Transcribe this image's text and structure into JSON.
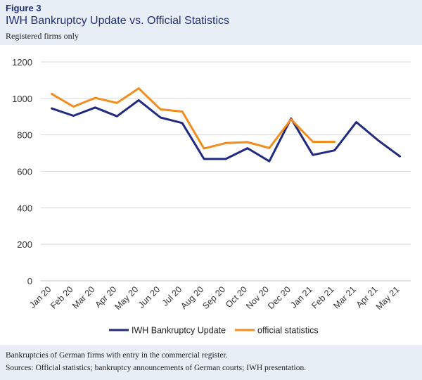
{
  "header": {
    "figure_label": "Figure 3",
    "title": "IWH Bankruptcy Update vs. Official Statistics",
    "subtitle": "Registered firms only"
  },
  "footer": {
    "note": "Bankruptcies of German firms with entry in the commercial register.",
    "sources": "Sources: Official statistics; bankruptcy announcements of German courts; IWH presentation."
  },
  "chart_data": {
    "type": "line",
    "title": "IWH Bankruptcy Update vs. Official Statistics",
    "subtitle": "Registered firms only",
    "xlabel": "",
    "ylabel": "",
    "ylim": [
      0,
      1200
    ],
    "yticks": [
      0,
      200,
      400,
      600,
      800,
      1000,
      1200
    ],
    "grid": true,
    "legend_position": "bottom",
    "categories": [
      "Jan 20",
      "Feb 20",
      "Mar 20",
      "Apr 20",
      "May 20",
      "Jun 20",
      "Jul 20",
      "Aug 20",
      "Sep 20",
      "Oct 20",
      "Nov 20",
      "Dec 20",
      "Jan 21",
      "Feb 21",
      "Mar 21",
      "Apr 21",
      "May 21"
    ],
    "series": [
      {
        "name": "IWH Bankruptcy Update",
        "color": "#1f2a80",
        "values": [
          945,
          905,
          950,
          902,
          990,
          895,
          865,
          668,
          668,
          727,
          655,
          890,
          690,
          715,
          870,
          770,
          682
        ]
      },
      {
        "name": "official statistics",
        "color": "#f28c1c",
        "values": [
          1025,
          955,
          1003,
          975,
          1055,
          940,
          928,
          725,
          755,
          760,
          728,
          885,
          762,
          762,
          null,
          null,
          null
        ]
      }
    ]
  }
}
